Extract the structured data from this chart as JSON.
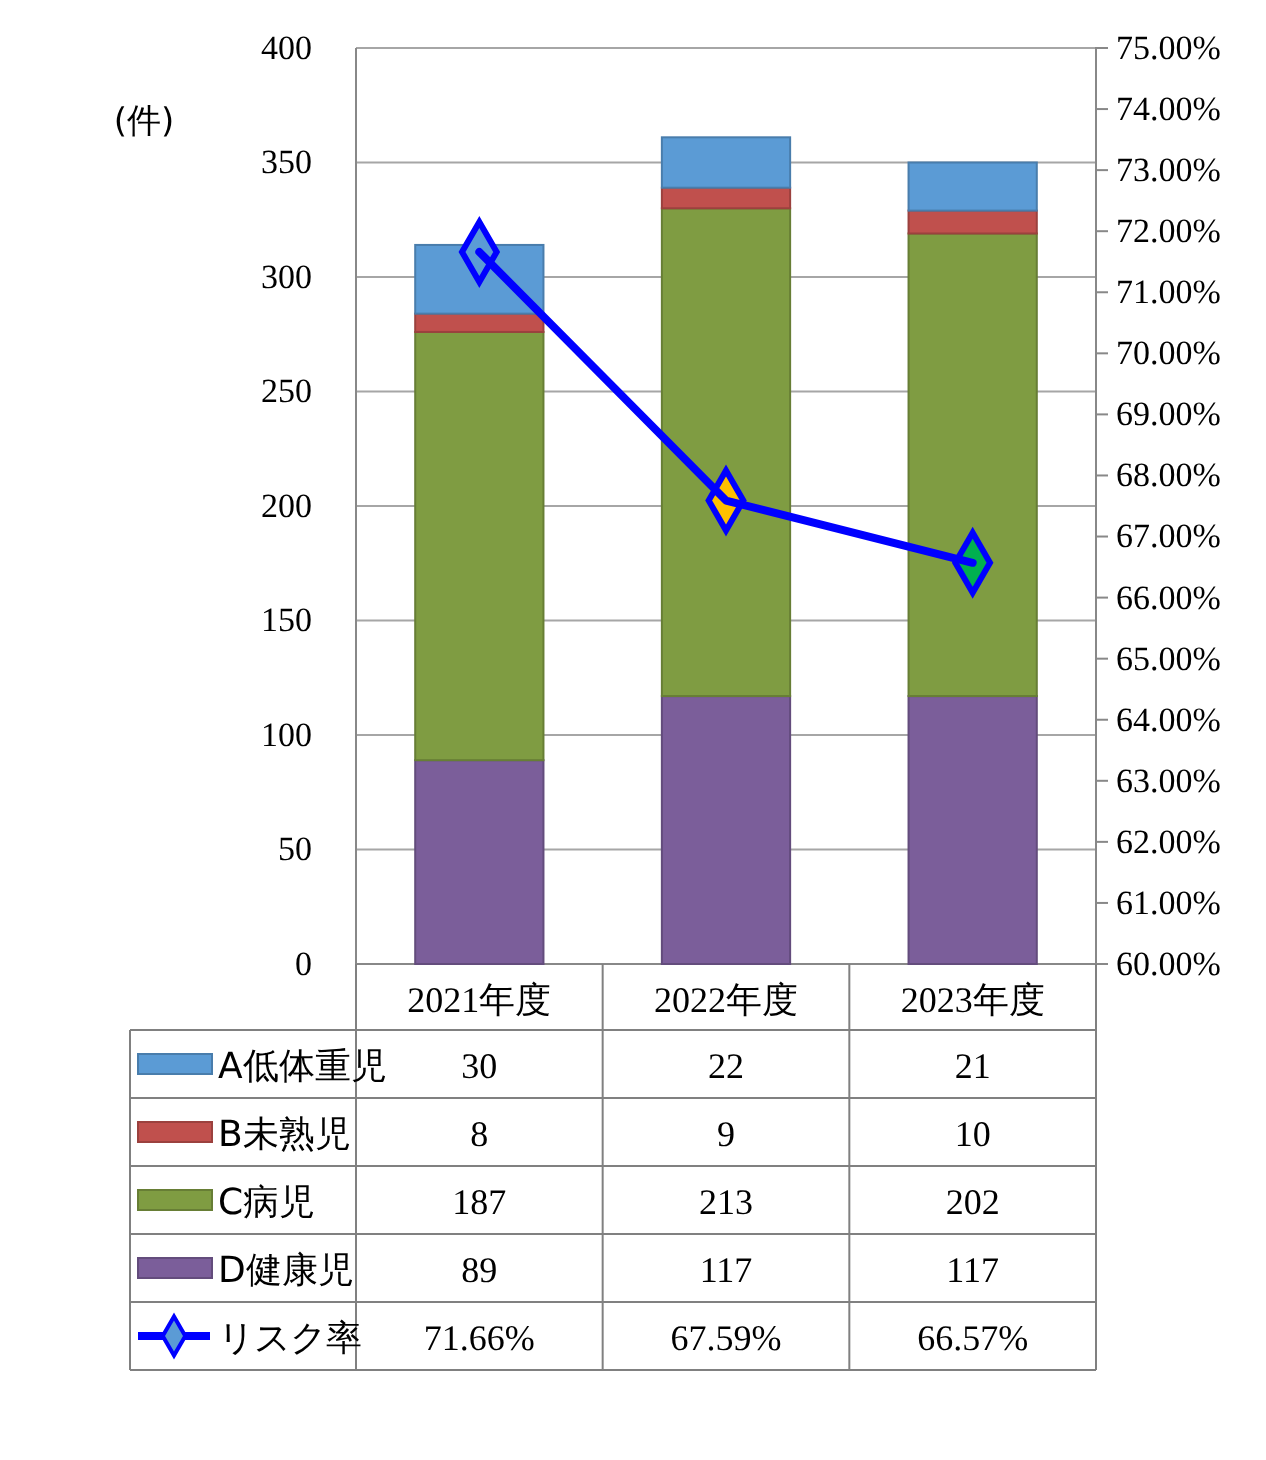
{
  "chart_data": {
    "type": "bar",
    "stacked": true,
    "categories": [
      "2021年度",
      "2022年度",
      "2023年度"
    ],
    "series": [
      {
        "name": "D健康児",
        "color": "#7b5e9a",
        "values": [
          89,
          117,
          117
        ]
      },
      {
        "name": "C病児",
        "color": "#7f9c42",
        "values": [
          187,
          213,
          202
        ]
      },
      {
        "name": "B未熟児",
        "color": "#c0504d",
        "values": [
          8,
          9,
          10
        ]
      },
      {
        "name": "A低体重児",
        "color": "#5b9bd5",
        "values": [
          30,
          22,
          21
        ]
      },
      {
        "name": "リスク率",
        "type": "line",
        "axis": "y2",
        "color": "#0000ff",
        "colors": [
          "#5b9bd5",
          "#ffc000",
          "#00b050"
        ],
        "marker": "diamond",
        "values": [
          71.66,
          67.59,
          66.57
        ],
        "value_labels": [
          "71.66%",
          "67.59%",
          "66.57%"
        ]
      }
    ],
    "ylabel": "(件)",
    "ylim": [
      0,
      400
    ],
    "yticks": [
      0,
      50,
      100,
      150,
      200,
      250,
      300,
      350,
      400
    ],
    "y2lim": [
      60,
      75
    ],
    "y2ticks": [
      {
        "value": 60,
        "label": "60.00%"
      },
      {
        "value": 61,
        "label": "61.00%"
      },
      {
        "value": 62,
        "label": "62.00%"
      },
      {
        "value": 63,
        "label": "63.00%"
      },
      {
        "value": 64,
        "label": "64.00%"
      },
      {
        "value": 65,
        "label": "65.00%"
      },
      {
        "value": 66,
        "label": "66.00%"
      },
      {
        "value": 67,
        "label": "67.00%"
      },
      {
        "value": 68,
        "label": "68.00%"
      },
      {
        "value": 69,
        "label": "69.00%"
      },
      {
        "value": 70,
        "label": "70.00%"
      },
      {
        "value": 71,
        "label": "71.00%"
      },
      {
        "value": 72,
        "label": "72.00%"
      },
      {
        "value": 73,
        "label": "73.00%"
      },
      {
        "value": 74,
        "label": "74.00%"
      },
      {
        "value": 75,
        "label": "75.00%"
      }
    ],
    "grid": "y",
    "legend": "bottom",
    "data_labels": true
  }
}
